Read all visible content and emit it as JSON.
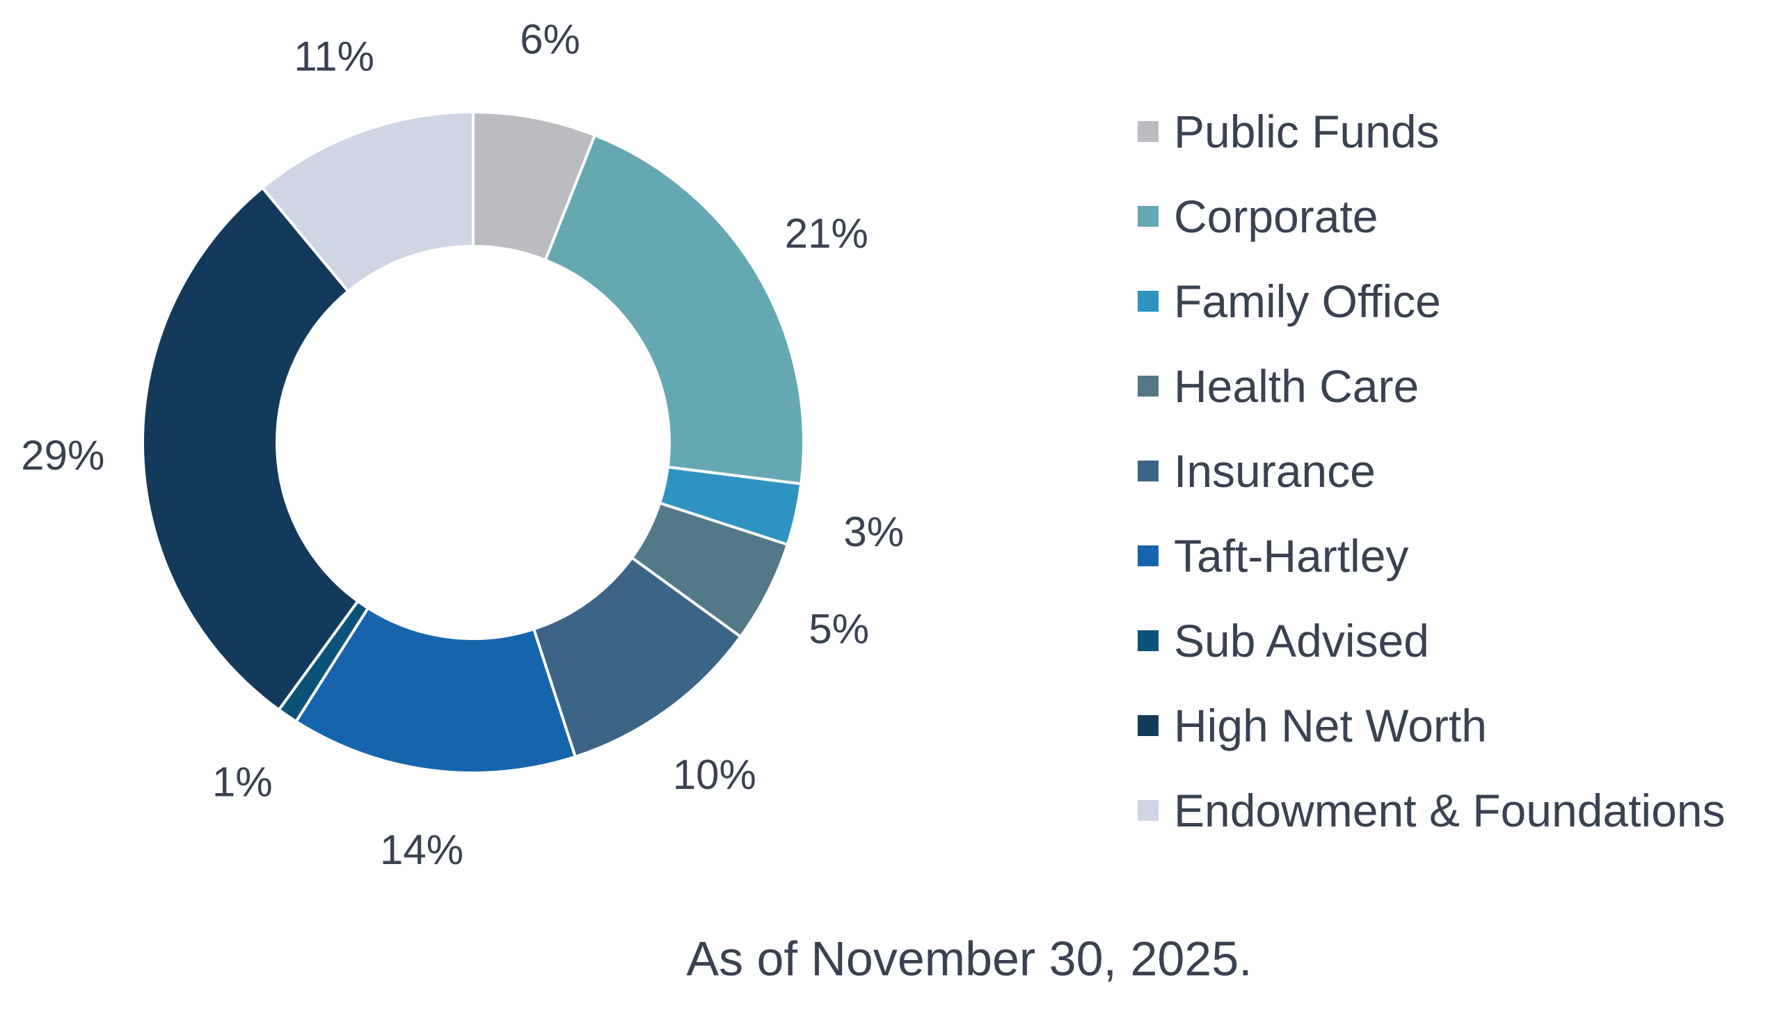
{
  "chart_data": {
    "type": "pie",
    "variant": "donut",
    "title": "",
    "slices": [
      {
        "name": "Public Funds",
        "value": 6,
        "label": "6%",
        "color": "#bbbcc0"
      },
      {
        "name": "Corporate",
        "value": 21,
        "label": "21%",
        "color": "#66a8b1"
      },
      {
        "name": "Family Office",
        "value": 3,
        "label": "3%",
        "color": "#2e93c1"
      },
      {
        "name": "Health Care",
        "value": 5,
        "label": "5%",
        "color": "#537888"
      },
      {
        "name": "Insurance",
        "value": 10,
        "label": "10%",
        "color": "#3c6487"
      },
      {
        "name": "Taft-Hartley",
        "value": 14,
        "label": "14%",
        "color": "#1664ac"
      },
      {
        "name": "Sub Advised",
        "value": 1,
        "label": "1%",
        "color": "#0b5279"
      },
      {
        "name": "High Net Worth",
        "value": 29,
        "label": "29%",
        "color": "#133a5b"
      },
      {
        "name": "Endowment & Foundations",
        "value": 11,
        "label": "11%",
        "color": "#cfd5e5"
      }
    ],
    "legend_position": "right"
  },
  "footnote": "As of November 30, 2025."
}
